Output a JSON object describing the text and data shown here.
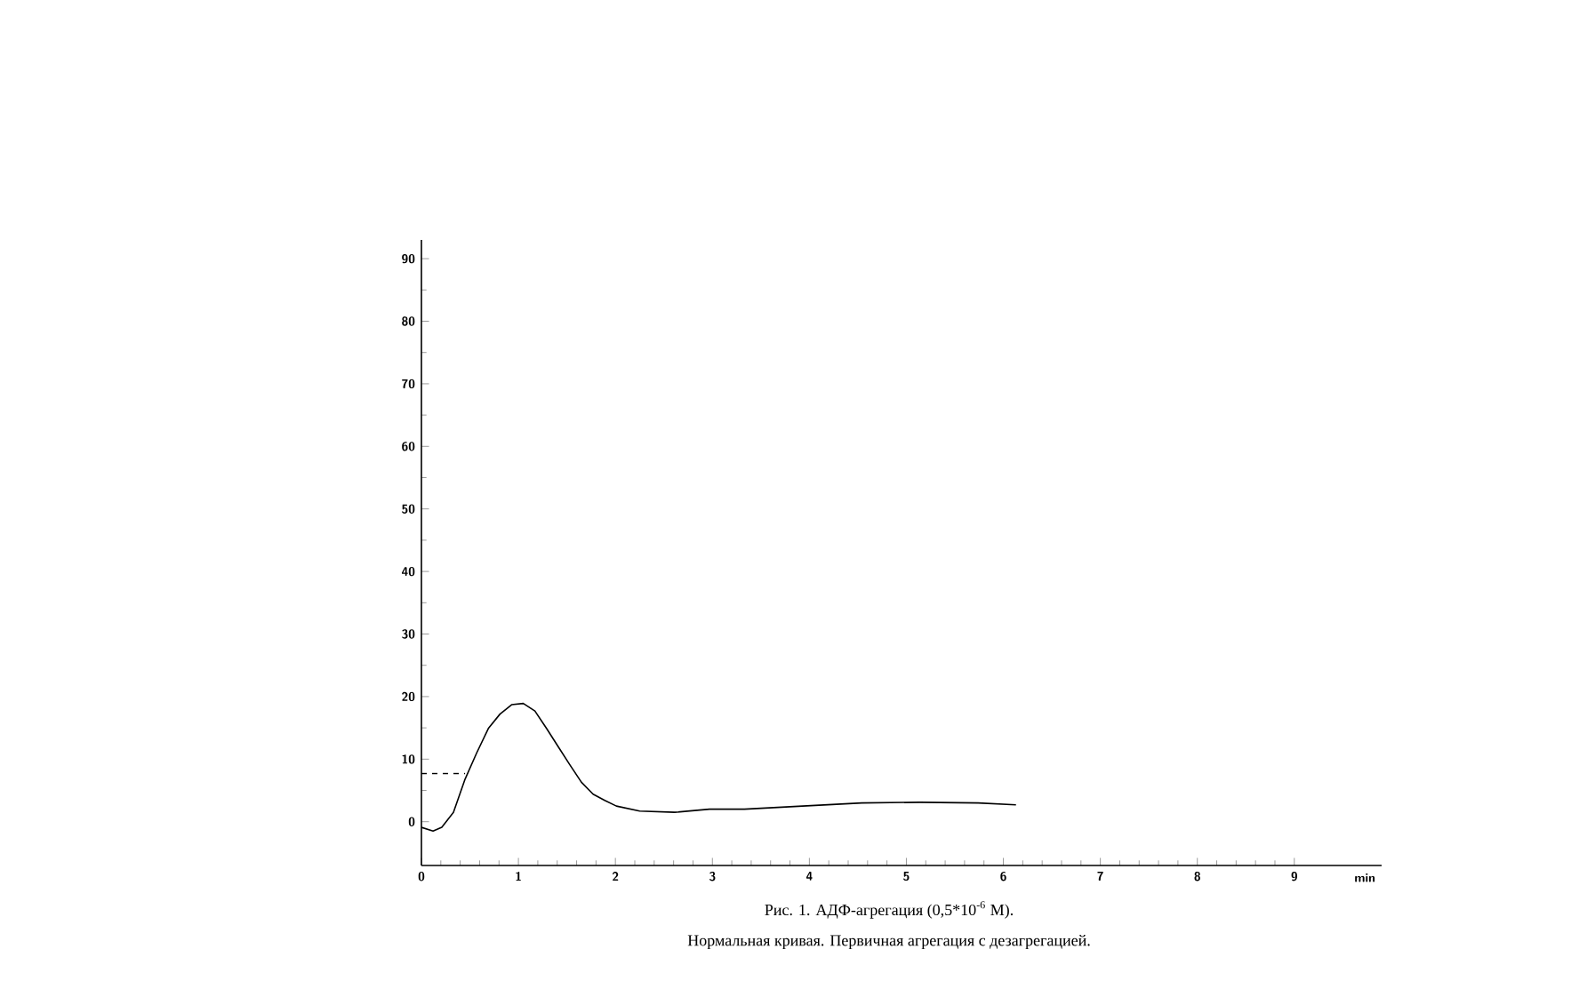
{
  "chart_data": {
    "type": "line",
    "xlabel": "min",
    "xlim": [
      0,
      9.9
    ],
    "ylim": [
      -7,
      93
    ],
    "xticks": [
      0,
      1,
      2,
      3,
      4,
      5,
      6,
      7,
      8,
      9
    ],
    "yticks": [
      0,
      10,
      20,
      30,
      40,
      50,
      60,
      70,
      80,
      90
    ],
    "series": [
      {
        "color": "#000000",
        "line_style": "solid",
        "x": [
          0,
          0.12,
          0.21,
          0.33,
          0.45,
          0.57,
          0.69,
          0.81,
          0.93,
          1.05,
          1.17,
          1.29,
          1.41,
          1.53,
          1.65,
          1.77,
          1.89,
          2.01,
          2.25,
          2.61,
          2.97,
          3.33,
          3.93,
          4.54,
          5.14,
          5.74,
          6.13
        ],
        "values": [
          -0.9,
          -1.5,
          -0.9,
          1.5,
          6.8,
          11.0,
          14.9,
          17.2,
          18.7,
          18.9,
          17.7,
          14.9,
          12.0,
          9.1,
          6.3,
          4.4,
          3.4,
          2.5,
          1.7,
          1.5,
          2.0,
          2.0,
          2.5,
          3.0,
          3.1,
          3.0,
          2.7
        ]
      },
      {
        "color": "#000000",
        "line_style": "dashed",
        "x": [
          0,
          0.45
        ],
        "values": [
          7.7,
          7.7
        ]
      }
    ],
    "annotations": [
      "Рис. 1. АДФ-агрегация (0,5*10$^{-6}$ M).",
      "Нормальная кривая. Первичная агрегация с дезагрегацией."
    ]
  }
}
